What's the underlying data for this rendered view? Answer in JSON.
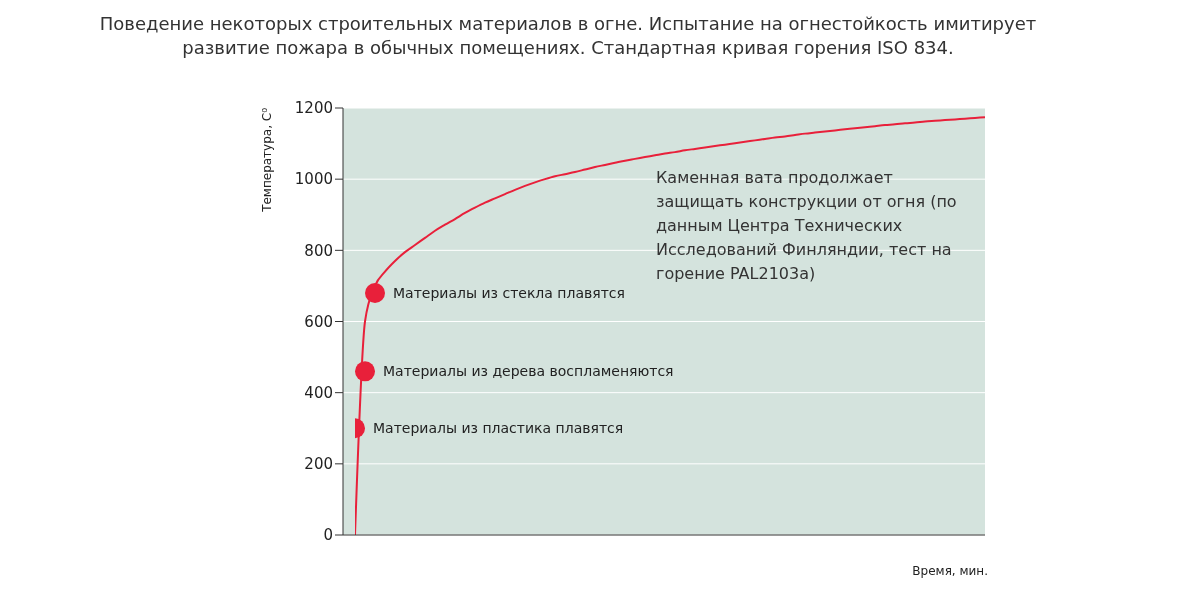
{
  "chart_data": {
    "type": "line",
    "title": "Поведение некоторых строительных материалов в огне. Испытание на огнестойкость имитирует развитие пожара в обычных помещениях. Стандартная кривая горения ISO 834.",
    "xlabel": "Время, мин.",
    "ylabel": "Температура, С⁰",
    "categories": [
      null,
      null,
      null,
      null,
      null,
      null,
      null,
      null,
      null,
      null,
      null,
      null,
      null,
      null,
      null,
      null,
      null,
      null,
      null,
      null,
      null,
      null,
      null,
      null,
      null,
      null,
      null,
      null,
      null,
      null,
      null,
      null,
      null,
      null,
      null,
      null,
      null,
      null,
      null,
      null,
      null,
      null,
      null,
      null,
      null,
      null,
      null,
      null,
      null,
      null,
      null,
      null,
      null,
      null,
      null,
      null,
      null,
      null,
      null,
      null,
      null,
      null,
      null,
      null
    ],
    "series": [
      {
        "type": "scatter",
        "marker": "circle",
        "color": "#e8203a",
        "values": [
          300,
          460,
          680,
          null,
          null,
          null,
          null,
          null,
          null,
          null,
          null,
          null,
          null,
          null,
          null,
          null,
          null,
          null,
          null,
          null,
          null,
          null,
          null,
          null,
          null,
          null,
          null,
          null,
          null,
          null,
          null,
          null,
          null,
          null,
          null,
          null,
          null,
          null,
          null,
          null,
          null,
          null,
          null,
          null,
          null,
          null,
          null,
          null,
          null,
          null,
          null,
          null,
          null,
          null,
          null,
          null,
          null,
          null,
          null,
          null,
          null,
          null,
          null,
          null
        ],
        "value_labels": [
          "Материалы из пластика плавятся",
          "Материалы из дерева воспламеняются",
          "Материалы из стекла плавятся",
          null,
          null,
          null,
          null,
          null,
          null,
          null,
          null,
          null,
          null,
          null,
          null,
          null,
          null,
          null,
          null,
          null,
          null,
          null,
          null,
          null,
          null,
          null,
          null,
          null,
          null,
          null,
          null,
          null,
          null,
          null,
          null,
          null,
          null,
          null,
          null,
          null,
          null,
          null,
          null,
          null,
          null,
          null,
          null,
          null,
          null,
          null,
          null,
          null,
          null,
          null,
          null,
          null,
          null,
          null,
          null,
          null,
          null,
          null,
          null,
          null
        ]
      },
      {
        "marker": "none",
        "color": "#e8203a",
        "values": [
          0,
          600,
          700,
          740,
          770,
          795,
          815,
          835,
          855,
          872,
          888,
          905,
          920,
          934,
          946,
          958,
          970,
          981,
          991,
          1000,
          1008,
          1014,
          1020,
          1027,
          1034,
          1040,
          1046,
          1052,
          1057,
          1062,
          1067,
          1072,
          1076,
          1081,
          1085,
          1089,
          1093,
          1097,
          1101,
          1105,
          1109,
          1113,
          1117,
          1120,
          1124,
          1128,
          1131,
          1134,
          1137,
          1140,
          1143,
          1146,
          1149,
          1152,
          1154,
          1157,
          1159,
          1162,
          1164,
          1166,
          1168,
          1170,
          1172,
          1174
        ]
      }
    ],
    "ylim": [
      0,
      1200
    ],
    "yticks": [
      0,
      200,
      400,
      600,
      800,
      1000,
      1200
    ],
    "grid": "y",
    "annotations": [
      "Каменная вата продолжает защищать конструкции от огня (по данным Центра Технических Исследований Финляндии, тест на горение PAL2103a)"
    ]
  }
}
